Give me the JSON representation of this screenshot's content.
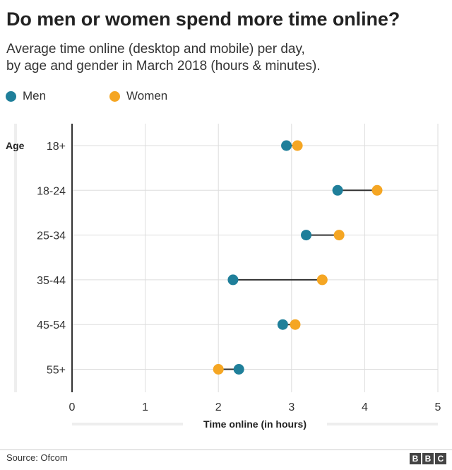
{
  "title": "Do men or women spend more time online?",
  "subtitle_line1": "Average time online (desktop and mobile) per day,",
  "subtitle_line2": "by age and gender in March 2018 (hours & minutes).",
  "legend": {
    "men": "Men",
    "women": "Women"
  },
  "colors": {
    "men": "#1f7f9a",
    "women": "#f5a623",
    "connector": "#333333",
    "grid": "#dddddd"
  },
  "source": "Source: Ofcom",
  "logo": [
    "B",
    "B",
    "C"
  ],
  "chart_data": {
    "type": "dumbbell",
    "title": "Do men or women spend more time online?",
    "ylabel": "Age",
    "xlabel": "Time online (in hours)",
    "xlim": [
      0,
      5
    ],
    "xticks": [
      "0",
      "1",
      "2",
      "3",
      "4",
      "5"
    ],
    "categories": [
      "18+",
      "18-24",
      "25-34",
      "35-44",
      "45-54",
      "55+"
    ],
    "series": [
      {
        "name": "Men",
        "values": [
          2.93,
          3.63,
          3.2,
          2.2,
          2.88,
          2.28
        ]
      },
      {
        "name": "Women",
        "values": [
          3.08,
          4.17,
          3.65,
          3.42,
          3.05,
          2.0
        ]
      }
    ]
  }
}
